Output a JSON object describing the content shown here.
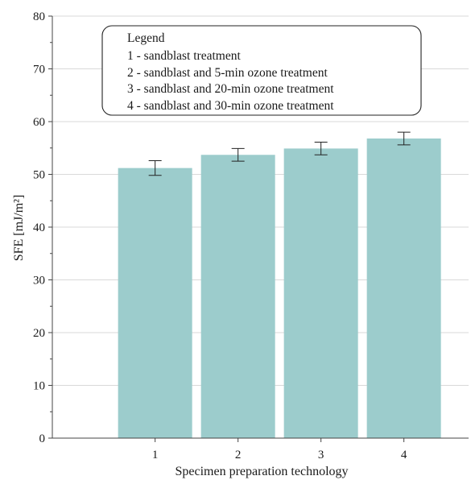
{
  "chart_data": {
    "type": "bar",
    "categories": [
      "1",
      "2",
      "3",
      "4"
    ],
    "values": [
      51.2,
      53.7,
      54.9,
      56.8
    ],
    "error": [
      1.4,
      1.2,
      1.2,
      1.2
    ],
    "xlabel": "Specimen preparation technology",
    "ylabel": "SFE [mJ/m²]",
    "ylim": [
      0,
      80
    ],
    "yticks": [
      0,
      10,
      20,
      30,
      40,
      50,
      60,
      70,
      80
    ],
    "grid": true,
    "legend": {
      "position": "top",
      "title": "Legend",
      "entries": [
        "1 - sandblast treatment",
        "2 - sandblast and 5-min ozone treatment",
        "3 - sandblast and 20-min ozone treatment",
        "4 - sandblast and 30-min ozone treatment"
      ]
    },
    "colors": {
      "bar": "#9ccccc",
      "grid": "#d9d9d9",
      "axis": "#444444"
    }
  }
}
